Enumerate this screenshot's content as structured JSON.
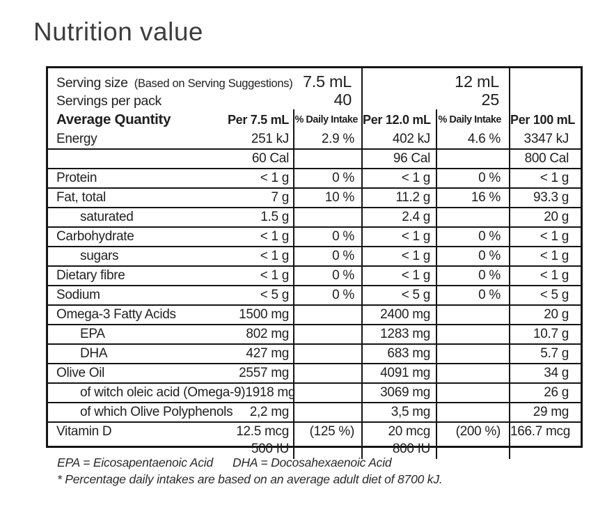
{
  "title": "Nutrition value",
  "table": {
    "serving_size": {
      "label": "Serving size",
      "note": "(Based on Serving Suggestions)",
      "v1": "7.5 mL",
      "v2": "12 mL"
    },
    "servings_per_pack": {
      "label": "Servings per pack",
      "v1": "40",
      "v2": "25"
    },
    "columns": {
      "name": "Average Quantity",
      "per1": "Per 7.5 mL",
      "di1": "% Daily Intake",
      "per2": "Per 12.0 mL",
      "di2": "% Daily Intake",
      "per100": "Per 100 mL"
    },
    "rows": [
      {
        "name": "Energy",
        "v1": "251 kJ",
        "di1": "2.9 %",
        "v2": "402 kJ",
        "di2": "4.6 %",
        "v3": "3347 kJ"
      },
      {
        "name": "",
        "v1": "60 Cal",
        "di1": "",
        "v2": "96 Cal",
        "di2": "",
        "v3": "800 Cal"
      },
      {
        "name": "Protein",
        "v1": "< 1 g",
        "di1": "0 %",
        "v2": "< 1 g",
        "di2": "0 %",
        "v3": "< 1 g"
      },
      {
        "name": "Fat, total",
        "v1": "7 g",
        "di1": "10 %",
        "v2": "11.2 g",
        "di2": "16 %",
        "v3": "93.3 g"
      },
      {
        "name": "saturated",
        "indent": true,
        "v1": "1.5 g",
        "di1": "",
        "v2": "2.4 g",
        "di2": "",
        "v3": "20 g"
      },
      {
        "name": "Carbohydrate",
        "v1": "< 1 g",
        "di1": "0 %",
        "v2": "< 1 g",
        "di2": "0 %",
        "v3": "< 1 g"
      },
      {
        "name": "sugars",
        "indent": true,
        "v1": "< 1 g",
        "di1": "0 %",
        "v2": "< 1 g",
        "di2": "0 %",
        "v3": "< 1 g"
      },
      {
        "name": "Dietary fibre",
        "v1": "< 1 g",
        "di1": "0 %",
        "v2": "< 1 g",
        "di2": "0 %",
        "v3": "< 1 g"
      },
      {
        "name": "Sodium",
        "v1": "< 5 g",
        "di1": "0 %",
        "v2": "< 5 g",
        "di2": "0 %",
        "v3": "< 5 g"
      },
      {
        "name": "Omega-3 Fatty Acids",
        "v1": "1500 mg",
        "di1": "",
        "v2": "2400 mg",
        "di2": "",
        "v3": "20 g"
      },
      {
        "name": "EPA",
        "indent": true,
        "v1": "802 mg",
        "di1": "",
        "v2": "1283 mg",
        "di2": "",
        "v3": "10.7 g"
      },
      {
        "name": "DHA",
        "indent": true,
        "v1": "427 mg",
        "di1": "",
        "v2": "683 mg",
        "di2": "",
        "v3": "5.7 g"
      },
      {
        "name": "Olive Oil",
        "v1": "2557 mg",
        "di1": "",
        "v2": "4091 mg",
        "di2": "",
        "v3": "34 g"
      },
      {
        "name": "of witch oleic acid (Omega-9)",
        "indent": true,
        "v1": "1918 mg",
        "di1": "",
        "v2": "3069 mg",
        "di2": "",
        "v3": "26 g"
      },
      {
        "name": "of which Olive Polyphenols",
        "indent": true,
        "v1": "2,2 mg",
        "di1": "",
        "v2": "3,5 mg",
        "di2": "",
        "v3": "29 mg"
      },
      {
        "name": "Vitamin D",
        "v1": "12.5 mcg",
        "v1b": "500 IU",
        "di1": "(125 %)",
        "v2": "20 mcg",
        "v2b": "800 IU",
        "di2": "(200 %)",
        "v3": "166.7 mcg",
        "last": true
      }
    ]
  },
  "footnotes": {
    "epa": "EPA = Eicosapentaenoic Acid",
    "dha": "DHA = Docosahexaenoic Acid",
    "daily_intake_note": "* Percentage daily intakes are based on an average adult diet of 8700 kJ."
  }
}
